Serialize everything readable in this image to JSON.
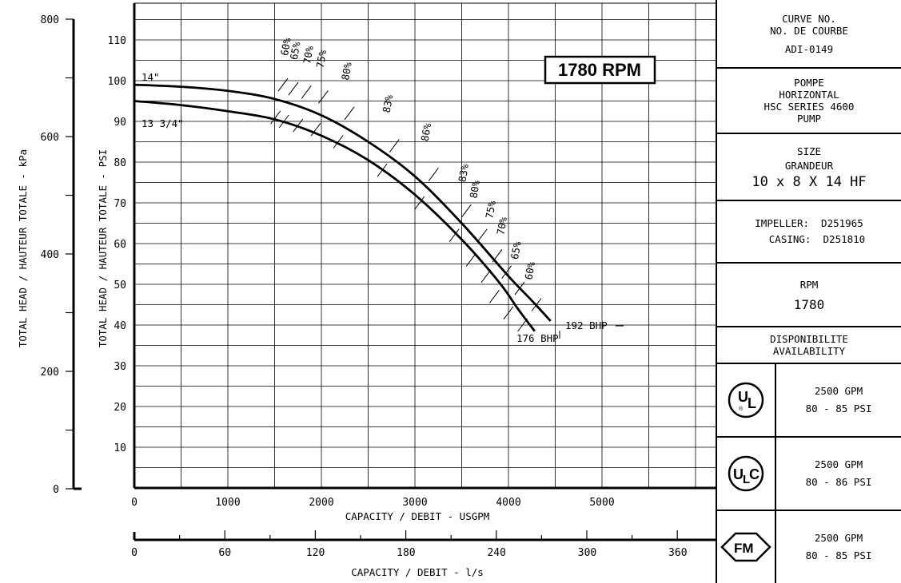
{
  "chart_data": {
    "type": "line",
    "title": "1780 RPM",
    "xlabel": "CAPACITY / DEBIT - USGPM",
    "x2label": "CAPACITY / DEBIT - l/s",
    "ylabel": "TOTAL HEAD / HAUTEUR TOTALE - PSI",
    "y2label": "TOTAL HEAD / HAUTEUR TOTALE - kPa",
    "xlim": [
      0,
      6250
    ],
    "ylim": [
      0,
      118
    ],
    "x_ticks": [
      "0",
      "1000",
      "2000",
      "3000",
      "4000",
      "5000"
    ],
    "x2_ticks": [
      "0",
      "60",
      "120",
      "180",
      "240",
      "300",
      "360"
    ],
    "y_ticks": [
      "10",
      "20",
      "30",
      "40",
      "50",
      "60",
      "70",
      "80",
      "90",
      "100",
      "110"
    ],
    "y2_ticks": [
      "0",
      "200",
      "400",
      "600",
      "800"
    ],
    "grid": true,
    "series": [
      {
        "name": "14\"",
        "end_label": "192 BHP",
        "x": [
          0,
          500,
          1000,
          1500,
          2000,
          2500,
          3000,
          3500,
          4000,
          4250,
          4450
        ],
        "y": [
          99,
          98.5,
          97.5,
          95.5,
          91.5,
          85,
          76.5,
          65,
          52,
          46,
          41
        ]
      },
      {
        "name": "13 3/4\"",
        "end_label": "176 BHP",
        "x": [
          0,
          500,
          1000,
          1500,
          2000,
          2500,
          3000,
          3500,
          3900,
          4100,
          4280
        ],
        "y": [
          95,
          94,
          92.5,
          90.5,
          86.5,
          80.5,
          72,
          61,
          50.5,
          44,
          38.5
        ]
      }
    ],
    "efficiency_labels": [
      "60%",
      "65%",
      "70%",
      "75%",
      "80%",
      "83%",
      "86%",
      "83%",
      "80%",
      "75%",
      "70%",
      "65%",
      "60%"
    ]
  },
  "sidebar": {
    "curve": [
      "CURVE NO.",
      "NO. DE COURBE",
      "ADI-0149"
    ],
    "pump": [
      "POMPE",
      "HORIZONTAL",
      "HSC SERIES 4600",
      "PUMP"
    ],
    "size": [
      "SIZE",
      "GRANDEUR",
      "10 x 8 X 14 HF"
    ],
    "impeller": "IMPELLER:  D251965",
    "casing": "CASING:  D251810",
    "rpm_label": "RPM",
    "rpm_value": "1780",
    "availability": [
      "DISPONIBILITE",
      "AVAILABILITY"
    ],
    "certs": [
      {
        "logo": "UL",
        "line1": "2500 GPM",
        "line2": "80 - 85 PSI"
      },
      {
        "logo": "ULC",
        "line1": "2500 GPM",
        "line2": "80 - 86 PSI"
      },
      {
        "logo": "FM",
        "line1": "2500 GPM",
        "line2": "80 - 85 PSI"
      }
    ]
  }
}
